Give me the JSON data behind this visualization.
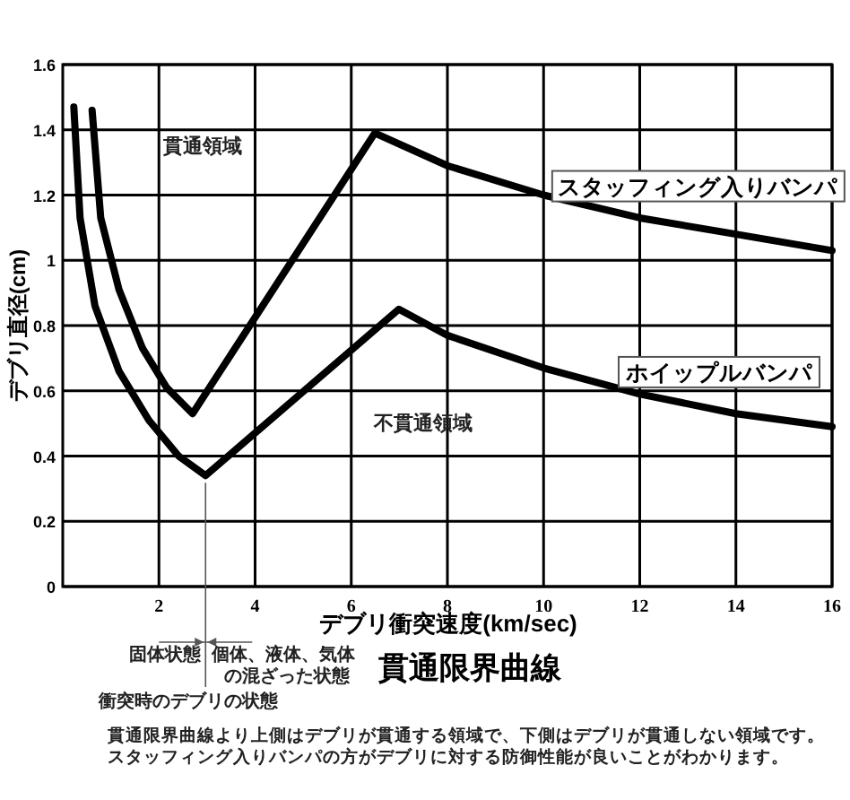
{
  "chart_data": {
    "type": "line",
    "title": "貫通限界曲線",
    "xlabel": "デブリ衝突速度(km/sec)",
    "ylabel": "デブリ直径(cm)",
    "xlim": [
      0,
      16
    ],
    "ylim": [
      0,
      1.6
    ],
    "xticks": [
      2,
      4,
      6,
      8,
      10,
      12,
      14,
      16
    ],
    "yticks": [
      0,
      0.2,
      0.4,
      0.6,
      0.8,
      1,
      1.2,
      1.4,
      1.6
    ],
    "grid": true,
    "line_style": "solid",
    "series": [
      {
        "name": "スタッフィング入りバンパ",
        "color": "#000000",
        "x": [
          0.61,
          0.79,
          1.17,
          1.66,
          2.16,
          2.7,
          6.49,
          8,
          10,
          12,
          14,
          16
        ],
        "values": [
          1.46,
          1.13,
          0.91,
          0.73,
          0.61,
          0.53,
          1.39,
          1.29,
          1.2,
          1.13,
          1.08,
          1.03
        ]
      },
      {
        "name": "ホイップルバンパ",
        "color": "#000000",
        "x": [
          0.23,
          0.36,
          0.67,
          1.17,
          1.79,
          2.41,
          2.97,
          6.99,
          8,
          10,
          12,
          14,
          16
        ],
        "values": [
          1.47,
          1.13,
          0.86,
          0.66,
          0.51,
          0.4,
          0.34,
          0.85,
          0.77,
          0.67,
          0.59,
          0.53,
          0.49
        ]
      }
    ],
    "ref_lines": [
      {
        "axis": "x",
        "value": 2.97
      }
    ],
    "annotations": [
      "貫通領域",
      "不貫通領域",
      "固体状態",
      "個体、液体、気体",
      "の混ざった状態",
      "衝突時のデブリの状態",
      "貫通限界曲線より上側はデブリが貫通する領域で、下側はデブリが貫通しない領域です。",
      "スタッフィング入りバンパの方がデブリに対する防御性能が良いことがわかります。"
    ]
  }
}
